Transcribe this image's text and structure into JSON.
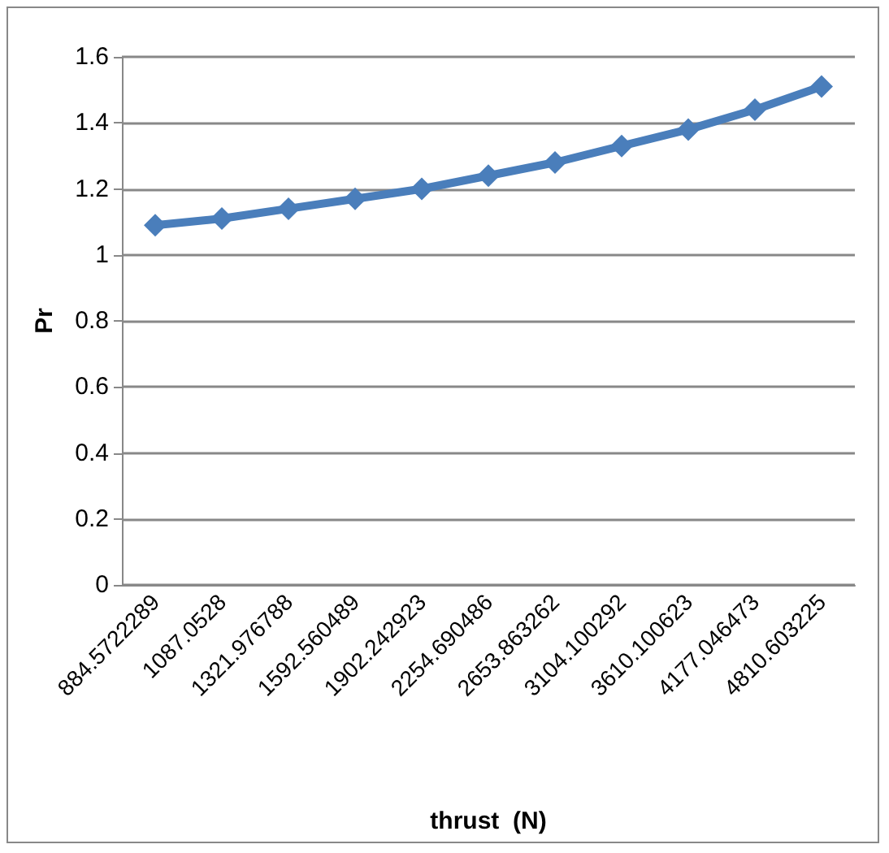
{
  "chart_data": {
    "type": "line",
    "xlabel": "thrust  (N)",
    "ylabel": "Pr",
    "categories": [
      "884.5722289",
      "1087.0528",
      "1321.976788",
      "1592.560489",
      "1902.242923",
      "2254.690486",
      "2653.863262",
      "3104.100292",
      "3610.100623",
      "4177.046473",
      "4810.603225"
    ],
    "series": [
      {
        "color": "#4a7ebb",
        "values": [
          1.09,
          1.11,
          1.14,
          1.17,
          1.2,
          1.24,
          1.28,
          1.33,
          1.38,
          1.44,
          1.51
        ]
      }
    ],
    "ylim": [
      0,
      1.6
    ],
    "yticks": [
      0,
      0.2,
      0.4,
      0.6,
      0.8,
      1,
      1.2,
      1.4,
      1.6
    ],
    "grid": "y",
    "marker": "diamond",
    "line_style": "solid"
  }
}
